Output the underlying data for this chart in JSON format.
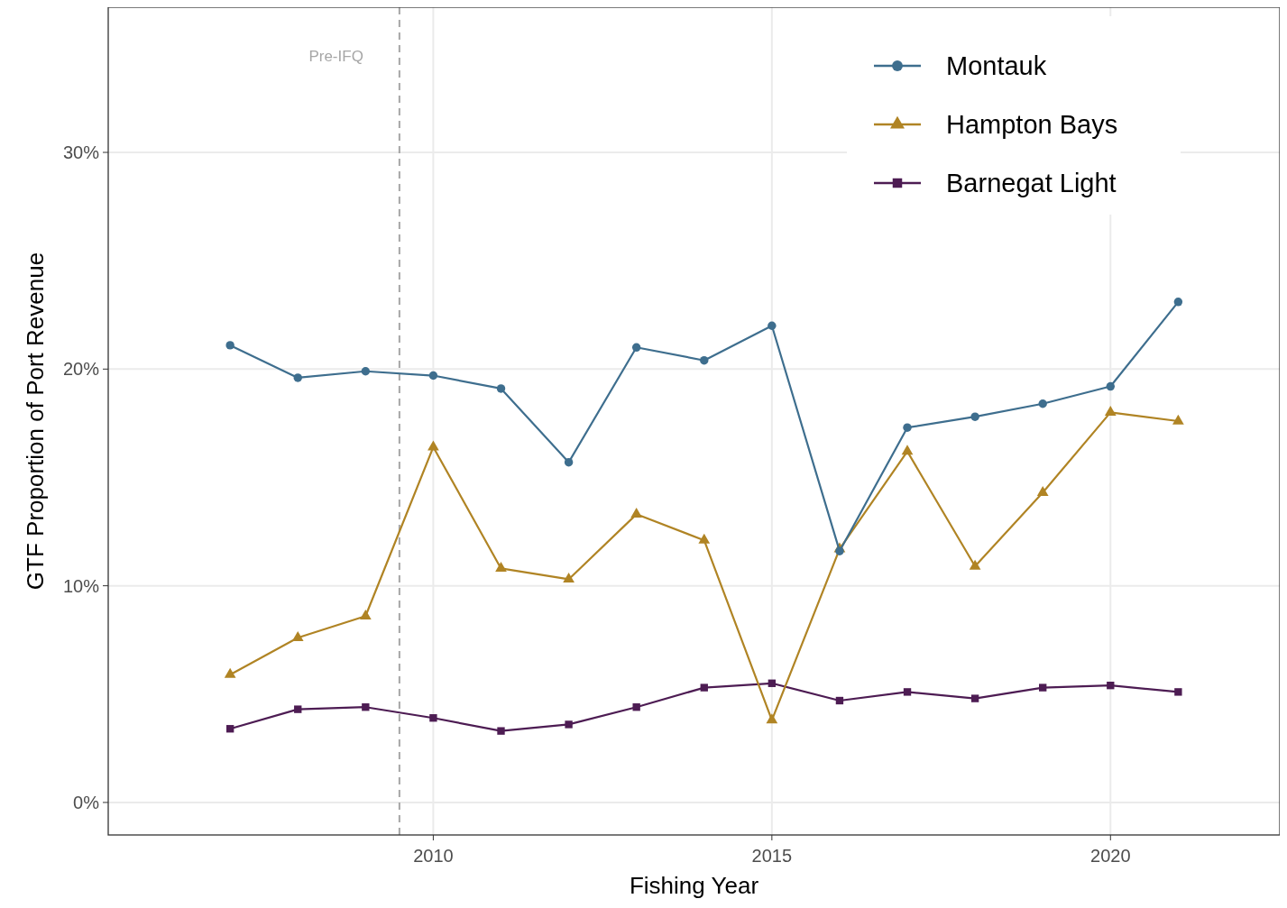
{
  "chart_data": {
    "type": "line",
    "xlabel": "Fishing Year",
    "ylabel": "GTF Proportion of Port Revenue",
    "x": [
      2007,
      2008,
      2009,
      2010,
      2011,
      2012,
      2013,
      2014,
      2015,
      2016,
      2017,
      2018,
      2019,
      2020,
      2021
    ],
    "series": [
      {
        "name": "Montauk",
        "color": "#3e6e8e",
        "marker": "circle",
        "values": [
          21.1,
          19.6,
          19.9,
          19.7,
          19.1,
          15.7,
          21.0,
          20.4,
          22.0,
          11.6,
          17.3,
          17.8,
          18.4,
          19.2,
          23.1
        ]
      },
      {
        "name": "Hampton Bays",
        "color": "#b08424",
        "marker": "triangle",
        "values": [
          5.9,
          7.6,
          8.6,
          16.4,
          10.8,
          10.3,
          13.3,
          12.1,
          3.8,
          11.7,
          16.2,
          10.9,
          14.3,
          18.0,
          17.6
        ]
      },
      {
        "name": "Barnegat Light",
        "color": "#4d1c53",
        "marker": "square",
        "values": [
          3.4,
          4.3,
          4.4,
          3.9,
          3.3,
          3.6,
          4.4,
          5.3,
          5.5,
          4.7,
          5.1,
          4.8,
          5.3,
          5.4,
          5.1
        ]
      }
    ],
    "xlim": [
      2005.2,
      2022.5
    ],
    "xticks": [
      2010,
      2015,
      2020
    ],
    "ylim": [
      -1.5,
      36.7
    ],
    "yticks": [
      {
        "value": 0,
        "label": "0%"
      },
      {
        "value": 10,
        "label": "10%"
      },
      {
        "value": 20,
        "label": "20%"
      },
      {
        "value": 30,
        "label": "30%"
      }
    ],
    "ref_lines": [
      {
        "axis": "x",
        "value": 2009.5,
        "label": "Pre-IFQ",
        "color": "#a6a6a6",
        "line_style": "dashed"
      }
    ],
    "grid": true,
    "legend": "top right",
    "line_style": "solid"
  }
}
